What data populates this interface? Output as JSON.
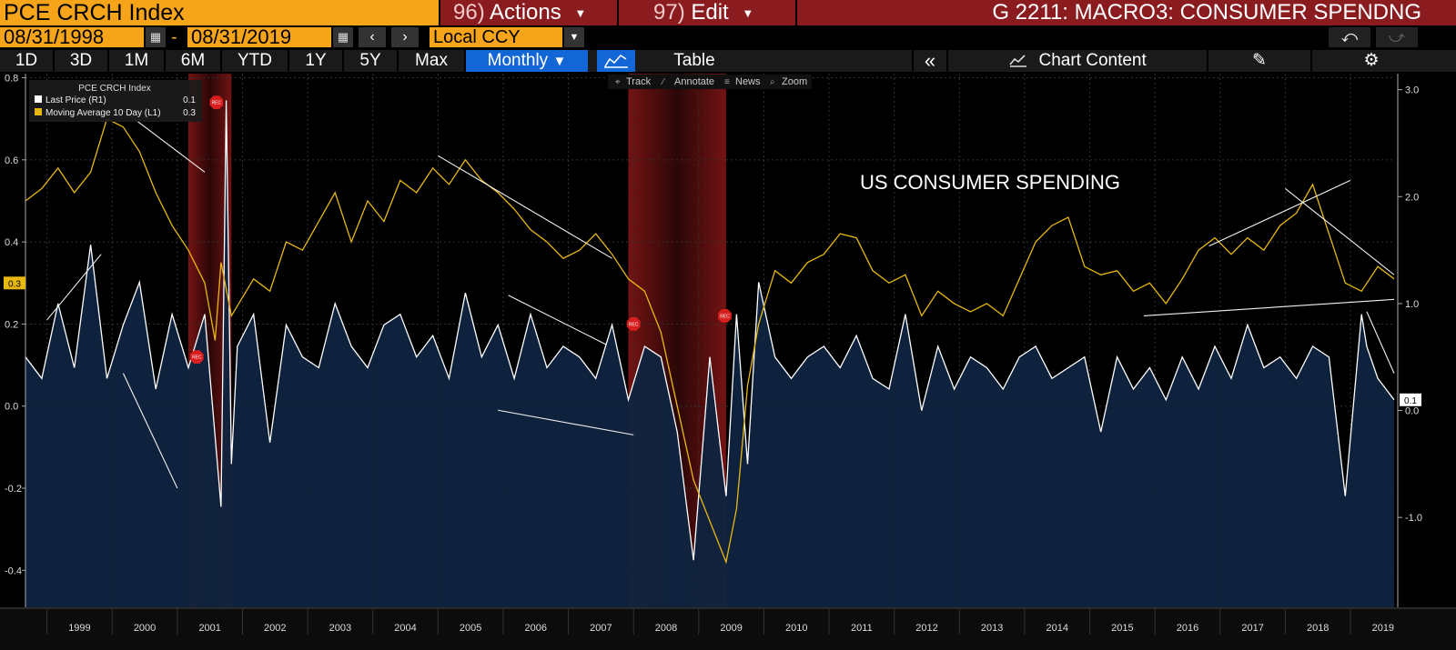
{
  "header": {
    "ticker": "PCE CRCH Index",
    "actions_num": "96)",
    "actions_label": "Actions",
    "edit_num": "97)",
    "edit_label": "Edit",
    "page_title": "G 2211: MACRO3: CONSUMER SPENDNG"
  },
  "range": {
    "start_date": "08/31/1998",
    "separator": "-",
    "end_date": "08/31/2019",
    "currency": "Local CCY"
  },
  "periods": [
    "1D",
    "3D",
    "1M",
    "6M",
    "YTD",
    "1Y",
    "5Y",
    "Max"
  ],
  "frequency": "Monthly",
  "table_label": "Table",
  "chart_content_label": "Chart Content",
  "mini_toolbar": [
    "Track",
    "Annotate",
    "News",
    "Zoom"
  ],
  "colors": {
    "accent_orange": "#f6a51b",
    "header_red": "#8a1c1f",
    "active_blue": "#1366d6",
    "price_line": "#ffffff",
    "ma_line": "#e8b810",
    "area_fill": "#0f2440",
    "recession_band": "#7a1414"
  },
  "chart_data": {
    "type": "line",
    "title": "US CONSUMER SPENDING",
    "legend": {
      "header": "PCE CRCH Index",
      "items": [
        {
          "label": "Last Price  (R1)",
          "value": "0.1",
          "color": "#ffffff"
        },
        {
          "label": "Moving Average 10 Day  (L1)",
          "value": "0.3",
          "color": "#e8b810"
        }
      ],
      "placement": "top-left"
    },
    "x_labels": [
      "1999",
      "2000",
      "2001",
      "2002",
      "2003",
      "2004",
      "2005",
      "2006",
      "2007",
      "2008",
      "2009",
      "2010",
      "2011",
      "2012",
      "2013",
      "2014",
      "2015",
      "2016",
      "2017",
      "2018",
      "2019"
    ],
    "x_range": [
      1998.67,
      2019.67
    ],
    "left_axis": {
      "ticks": [
        "-0.4",
        "-0.2",
        "0.0",
        "0.2",
        "0.4",
        "0.6",
        "0.8"
      ],
      "range": [
        -0.49,
        0.81
      ],
      "current_label": "0.3"
    },
    "right_axis": {
      "ticks": [
        "-1.0",
        "0.0",
        "1.0",
        "2.0",
        "3.0"
      ],
      "range": [
        -1.84,
        3.15
      ],
      "current_label": "0.1"
    },
    "grid": true,
    "recession_markers": [
      "REC",
      "REC",
      "REC",
      "REC"
    ],
    "recession_periods": [
      [
        2001.17,
        2001.83
      ],
      [
        2007.92,
        2009.42
      ]
    ],
    "series": [
      {
        "name": "Last Price",
        "axis": "right",
        "x": [
          1998.67,
          1998.92,
          1999.17,
          1999.42,
          1999.67,
          1999.92,
          2000.17,
          2000.42,
          2000.67,
          2000.92,
          2001.17,
          2001.42,
          2001.67,
          2001.75,
          2001.83,
          2001.92,
          2002.17,
          2002.42,
          2002.67,
          2002.92,
          2003.17,
          2003.42,
          2003.67,
          2003.92,
          2004.17,
          2004.42,
          2004.67,
          2004.92,
          2005.17,
          2005.42,
          2005.67,
          2005.92,
          2006.17,
          2006.42,
          2006.67,
          2006.92,
          2007.17,
          2007.42,
          2007.67,
          2007.92,
          2008.17,
          2008.42,
          2008.67,
          2008.92,
          2009.17,
          2009.42,
          2009.58,
          2009.75,
          2009.92,
          2010.17,
          2010.42,
          2010.67,
          2010.92,
          2011.17,
          2011.42,
          2011.67,
          2011.92,
          2012.17,
          2012.42,
          2012.67,
          2012.92,
          2013.17,
          2013.42,
          2013.67,
          2013.92,
          2014.17,
          2014.42,
          2014.67,
          2014.92,
          2015.17,
          2015.42,
          2015.67,
          2015.92,
          2016.17,
          2016.42,
          2016.67,
          2016.92,
          2017.17,
          2017.42,
          2017.67,
          2017.92,
          2018.17,
          2018.42,
          2018.67,
          2018.92,
          2019.17,
          2019.25,
          2019.42,
          2019.67
        ],
        "y": [
          0.5,
          0.3,
          1.0,
          0.4,
          1.55,
          0.3,
          0.8,
          1.2,
          0.2,
          0.9,
          0.4,
          0.9,
          -0.9,
          2.9,
          -0.5,
          0.6,
          0.9,
          -0.3,
          0.8,
          0.5,
          0.4,
          1.0,
          0.6,
          0.4,
          0.8,
          0.9,
          0.5,
          0.7,
          0.3,
          1.1,
          0.5,
          0.8,
          0.3,
          0.9,
          0.4,
          0.6,
          0.5,
          0.3,
          0.8,
          0.1,
          0.6,
          0.5,
          -0.2,
          -1.4,
          0.5,
          -0.8,
          0.9,
          -0.5,
          1.2,
          0.5,
          0.3,
          0.5,
          0.6,
          0.4,
          0.7,
          0.3,
          0.2,
          0.9,
          0.0,
          0.6,
          0.2,
          0.5,
          0.4,
          0.2,
          0.5,
          0.6,
          0.3,
          0.4,
          0.5,
          -0.2,
          0.5,
          0.2,
          0.4,
          0.1,
          0.5,
          0.2,
          0.6,
          0.3,
          0.8,
          0.4,
          0.5,
          0.3,
          0.6,
          0.5,
          -0.8,
          0.9,
          0.6,
          0.3,
          0.1
        ]
      },
      {
        "name": "Moving Average 10 Day",
        "axis": "left",
        "x": [
          1998.67,
          1998.92,
          1999.17,
          1999.42,
          1999.67,
          1999.92,
          2000.17,
          2000.42,
          2000.67,
          2000.92,
          2001.17,
          2001.42,
          2001.58,
          2001.67,
          2001.83,
          2002.17,
          2002.42,
          2002.67,
          2002.92,
          2003.17,
          2003.42,
          2003.67,
          2003.92,
          2004.17,
          2004.42,
          2004.67,
          2004.92,
          2005.17,
          2005.42,
          2005.67,
          2005.92,
          2006.17,
          2006.42,
          2006.67,
          2006.92,
          2007.17,
          2007.42,
          2007.67,
          2007.92,
          2008.17,
          2008.42,
          2008.67,
          2008.92,
          2009.17,
          2009.42,
          2009.58,
          2009.75,
          2009.92,
          2010.17,
          2010.42,
          2010.67,
          2010.92,
          2011.17,
          2011.42,
          2011.67,
          2011.92,
          2012.17,
          2012.42,
          2012.67,
          2012.92,
          2013.17,
          2013.42,
          2013.67,
          2013.92,
          2014.17,
          2014.42,
          2014.67,
          2014.92,
          2015.17,
          2015.42,
          2015.67,
          2015.92,
          2016.17,
          2016.42,
          2016.67,
          2016.92,
          2017.17,
          2017.42,
          2017.67,
          2017.92,
          2018.17,
          2018.42,
          2018.67,
          2018.92,
          2019.17,
          2019.42,
          2019.67
        ],
        "y": [
          0.5,
          0.53,
          0.58,
          0.52,
          0.57,
          0.7,
          0.68,
          0.62,
          0.52,
          0.44,
          0.38,
          0.3,
          0.16,
          0.35,
          0.22,
          0.31,
          0.28,
          0.4,
          0.38,
          0.45,
          0.52,
          0.4,
          0.5,
          0.45,
          0.55,
          0.52,
          0.58,
          0.54,
          0.6,
          0.55,
          0.52,
          0.48,
          0.43,
          0.4,
          0.36,
          0.38,
          0.42,
          0.37,
          0.31,
          0.28,
          0.18,
          0.0,
          -0.18,
          -0.28,
          -0.38,
          -0.25,
          0.05,
          0.2,
          0.33,
          0.3,
          0.35,
          0.37,
          0.42,
          0.41,
          0.33,
          0.3,
          0.32,
          0.22,
          0.28,
          0.25,
          0.23,
          0.25,
          0.22,
          0.31,
          0.4,
          0.44,
          0.46,
          0.34,
          0.32,
          0.33,
          0.28,
          0.3,
          0.25,
          0.31,
          0.38,
          0.41,
          0.37,
          0.41,
          0.38,
          0.44,
          0.47,
          0.54,
          0.42,
          0.3,
          0.28,
          0.34,
          0.31
        ]
      }
    ],
    "annotations": [
      "US CONSUMER SPENDING"
    ]
  }
}
